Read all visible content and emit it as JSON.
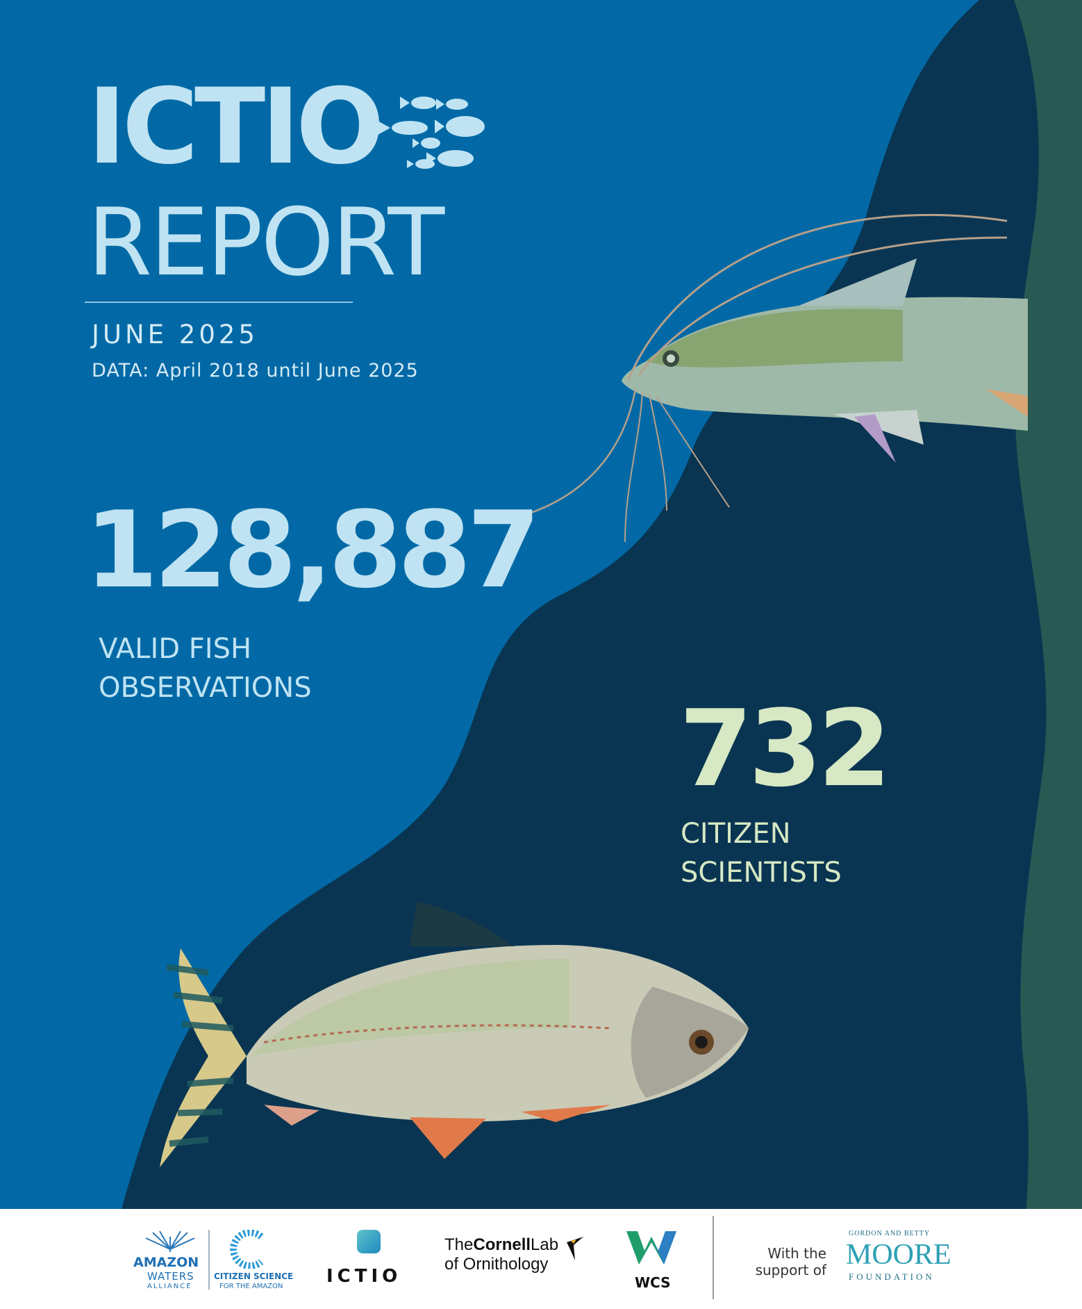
{
  "colors": {
    "light_blue": "#0269a6",
    "dark_navy": "#0a3552",
    "side_green": "#285a53",
    "title_color": "#bfe3f3",
    "accent_green": "#d6e8c4"
  },
  "header": {
    "title": "ICTIO",
    "subtitle": "REPORT",
    "date": "JUNE 2025",
    "data_range": "DATA: April 2018 until June 2025"
  },
  "stats": {
    "observations": {
      "value": "128,887",
      "label_line1": "VALID FISH",
      "label_line2": "OBSERVATIONS"
    },
    "scientists": {
      "value": "732",
      "label_line1": "CITIZEN",
      "label_line2": "SCIENTISTS"
    }
  },
  "footer": {
    "amazon_waters": {
      "line1": "AMAZON",
      "line2": "WATERS",
      "line3": "ALLIANCE"
    },
    "citizen_science": {
      "line1": "CITIZEN SCIENCE",
      "line2": "FOR THE AMAZON"
    },
    "ictio": "ICTIO",
    "cornell": {
      "line1_a": "The",
      "line1_b": "Cornell",
      "line1_c": "Lab",
      "line2": "of Ornithology"
    },
    "wcs": "WCS",
    "support": {
      "line1": "With the",
      "line2": "support of"
    },
    "moore": {
      "top": "GORDON AND BETTY",
      "main": "MOORE",
      "bottom": "FOUNDATION"
    }
  }
}
